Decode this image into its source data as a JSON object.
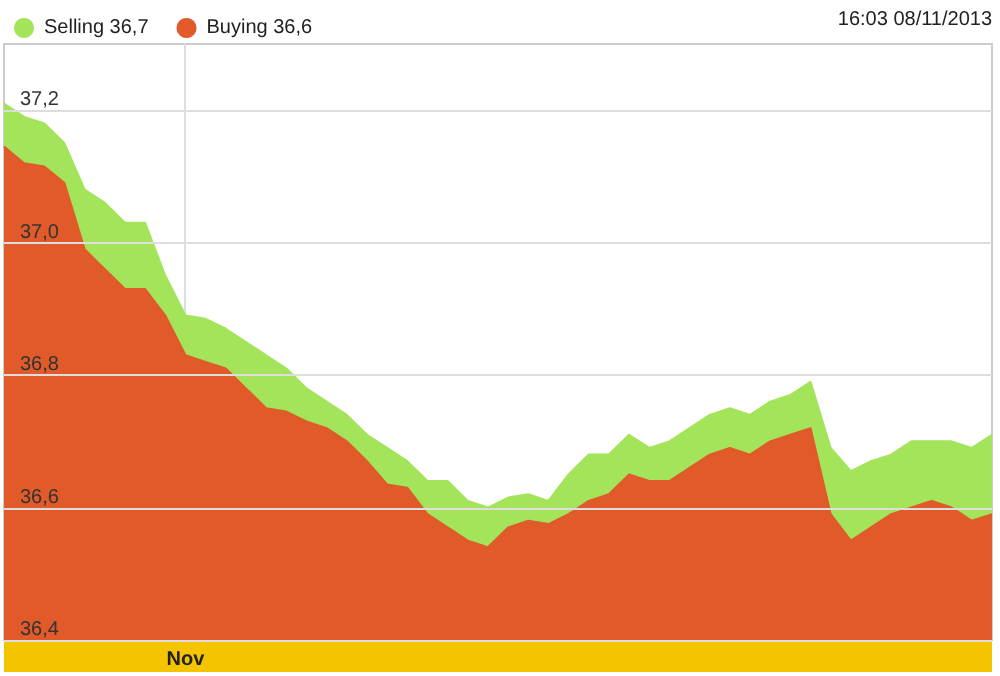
{
  "chart_data": {
    "type": "area",
    "annotations": [
      "16:03 08/11/2013"
    ],
    "categories": [
      null,
      null,
      null,
      null,
      null,
      null,
      null,
      null,
      null,
      "Nov",
      null,
      null,
      null,
      null,
      null,
      null,
      null,
      null,
      null,
      null,
      null,
      null,
      null,
      null,
      null,
      null,
      null,
      null,
      null,
      null,
      null,
      null,
      null,
      null,
      null,
      null,
      null,
      null,
      null,
      null,
      null,
      null,
      null,
      null,
      null,
      null,
      null,
      null,
      null,
      null
    ],
    "series": [
      {
        "name": "Selling 36,7",
        "color": "#a3e45a",
        "values": [
          37.21,
          37.19,
          37.18,
          37.15,
          37.08,
          37.06,
          37.03,
          37.03,
          36.95,
          36.89,
          36.885,
          36.87,
          36.85,
          36.83,
          36.81,
          36.78,
          36.76,
          36.74,
          36.71,
          36.69,
          36.67,
          36.64,
          36.64,
          36.61,
          36.6,
          36.615,
          36.62,
          36.61,
          36.65,
          36.68,
          36.68,
          36.71,
          36.69,
          36.7,
          36.72,
          36.74,
          36.75,
          36.74,
          36.76,
          36.77,
          36.79,
          36.69,
          36.655,
          36.67,
          36.68,
          36.7,
          36.7,
          36.7,
          36.69,
          36.71
        ]
      },
      {
        "name": "Buying 36,6",
        "color": "#e05a2a",
        "values": [
          37.145,
          37.12,
          37.115,
          37.09,
          36.99,
          36.96,
          36.93,
          36.93,
          36.89,
          36.83,
          36.82,
          36.81,
          36.78,
          36.75,
          36.745,
          36.73,
          36.72,
          36.7,
          36.67,
          36.635,
          36.63,
          36.59,
          36.57,
          36.55,
          36.54,
          36.57,
          36.58,
          36.575,
          36.59,
          36.61,
          36.62,
          36.65,
          36.64,
          36.64,
          36.66,
          36.68,
          36.69,
          36.68,
          36.7,
          36.71,
          36.72,
          36.59,
          36.55,
          36.57,
          36.59,
          36.6,
          36.61,
          36.6,
          36.58,
          36.59
        ]
      }
    ],
    "ylim": [
      36.4,
      37.3
    ],
    "yticks": [
      {
        "value": 36.4,
        "label": "36,4"
      },
      {
        "value": 36.6,
        "label": "36,6"
      },
      {
        "value": 36.8,
        "label": "36,8"
      },
      {
        "value": 37.0,
        "label": "37,0"
      },
      {
        "value": 37.2,
        "label": "37,2"
      }
    ],
    "grid": true,
    "legend": "top left",
    "marker": "none"
  }
}
